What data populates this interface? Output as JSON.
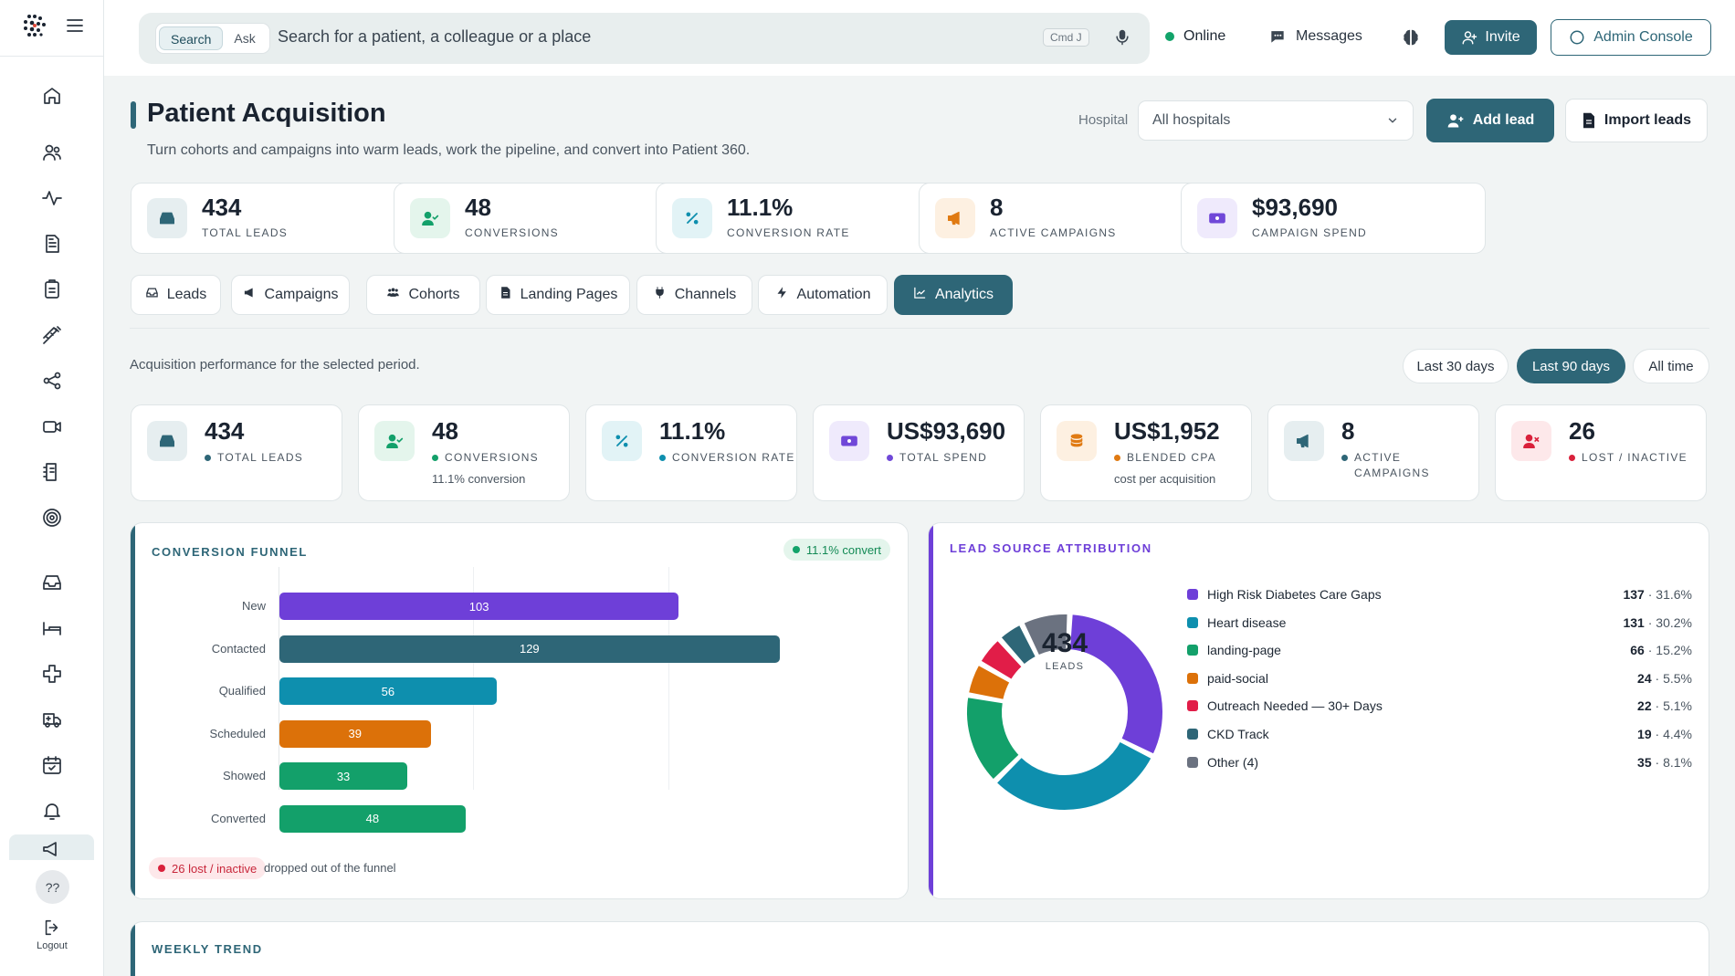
{
  "topbar": {
    "search_tab": "Search",
    "ask_tab": "Ask",
    "search_placeholder": "Search for a patient, a colleague or a place",
    "shortcut": "Cmd J",
    "status": "Online",
    "messages": "Messages",
    "invite": "Invite",
    "admin_console": "Admin Console"
  },
  "sidebar": {
    "items": [
      "home-icon",
      "users-icon",
      "activity-icon",
      "document-icon",
      "clipboard-icon",
      "syringe-icon",
      "share-icon",
      "video-icon",
      "notes-icon",
      "target-icon",
      "inbox-icon",
      "bed-icon",
      "plus-cross-icon",
      "ambulance-icon",
      "calendar-check-icon",
      "bell-icon",
      "megaphone-icon"
    ],
    "help": "??",
    "logout": "Logout"
  },
  "header": {
    "title": "Patient Acquisition",
    "subtitle": "Turn cohorts and campaigns into warm leads, work the pipeline, and convert into Patient 360.",
    "hospital_label": "Hospital",
    "hospital_value": "All hospitals",
    "add_lead": "Add lead",
    "import_leads": "Import leads"
  },
  "kpis": [
    {
      "value": "434",
      "label": "TOTAL LEADS",
      "icon": "inbox-icon",
      "color": "#2e6677",
      "bg": "#e6eef0"
    },
    {
      "value": "48",
      "label": "CONVERSIONS",
      "icon": "user-check-icon",
      "color": "#13a06a",
      "bg": "#e4f5ec"
    },
    {
      "value": "11.1%",
      "label": "CONVERSION RATE",
      "icon": "percent-icon",
      "color": "#0e8fae",
      "bg": "#e2f3f6"
    },
    {
      "value": "8",
      "label": "ACTIVE CAMPAIGNS",
      "icon": "megaphone-icon",
      "color": "#e07a12",
      "bg": "#fdf0e1"
    },
    {
      "value": "$93,690",
      "label": "CAMPAIGN SPEND",
      "icon": "money-icon",
      "color": "#7048d8",
      "bg": "#efeafc"
    }
  ],
  "tabs": [
    "Leads",
    "Campaigns",
    "Cohorts",
    "Landing Pages",
    "Channels",
    "Automation",
    "Analytics"
  ],
  "active_tab": "Analytics",
  "analytics": {
    "period_text": "Acquisition performance for the selected period.",
    "periods": [
      "Last 30 days",
      "Last 90 days",
      "All time"
    ],
    "active_period": "Last 90 days",
    "metrics": [
      {
        "value": "434",
        "label": "TOTAL LEADS",
        "note": "",
        "dot": "#2e6677"
      },
      {
        "value": "48",
        "label": "CONVERSIONS",
        "note": "11.1% conversion",
        "dot": "#13a06a"
      },
      {
        "value": "11.1%",
        "label": "CONVERSION RATE",
        "note": "",
        "dot": "#0e8fae"
      },
      {
        "value": "US$93,690",
        "label": "TOTAL SPEND",
        "note": "",
        "dot": "#7048d8"
      },
      {
        "value": "US$1,952",
        "label": "BLENDED CPA",
        "note": "cost per acquisition",
        "dot": "#e07a12"
      },
      {
        "value": "8",
        "label": "ACTIVE CAMPAIGNS",
        "note": "",
        "dot": "#2e6677"
      },
      {
        "value": "26",
        "label": "LOST / INACTIVE",
        "note": "",
        "dot": "#d9213b"
      }
    ]
  },
  "funnel": {
    "title": "CONVERSION FUNNEL",
    "badge": "11.1% convert",
    "lost_badge": "26 lost / inactive",
    "lost_note": "dropped out of the funnel"
  },
  "attribution": {
    "title": "LEAD SOURCE ATTRIBUTION",
    "center_value": "434",
    "center_label": "LEADS"
  },
  "weekly": {
    "title": "WEEKLY TREND"
  },
  "chart_data": [
    {
      "type": "bar",
      "orientation": "horizontal",
      "title": "CONVERSION FUNNEL",
      "categories": [
        "New",
        "Contacted",
        "Qualified",
        "Scheduled",
        "Showed",
        "Converted"
      ],
      "values": [
        103,
        129,
        56,
        39,
        33,
        48
      ],
      "colors": [
        "#6e3fd8",
        "#2e6677",
        "#0e8fae",
        "#dc7109",
        "#13a06a",
        "#13a06a"
      ],
      "xlim": [
        0,
        150
      ],
      "grid": true
    },
    {
      "type": "pie",
      "style": "donut",
      "title": "LEAD SOURCE ATTRIBUTION",
      "labels": [
        "High Risk Diabetes Care Gaps",
        "Heart disease",
        "landing-page",
        "paid-social",
        "Outreach Needed — 30+ Days",
        "CKD Track",
        "Other (4)"
      ],
      "values": [
        137,
        131,
        66,
        24,
        22,
        19,
        35
      ],
      "percents": [
        "31.6%",
        "30.2%",
        "15.2%",
        "5.5%",
        "5.1%",
        "4.4%",
        "8.1%"
      ],
      "colors": [
        "#6e3fd8",
        "#0e8fae",
        "#13a06a",
        "#dc7109",
        "#e11d48",
        "#2e6677",
        "#6b7280"
      ]
    }
  ]
}
